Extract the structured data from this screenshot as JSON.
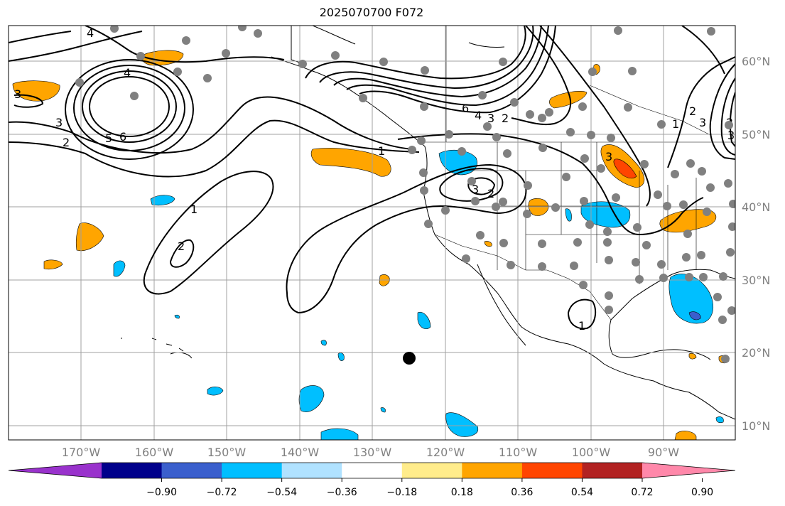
{
  "title": "2025070700 F072",
  "map": {
    "lat_labels": [
      "60°N",
      "50°N",
      "40°N",
      "30°N",
      "20°N",
      "10°N"
    ],
    "lon_labels": [
      "170°W",
      "160°W",
      "150°W",
      "140°W",
      "130°W",
      "120°W",
      "110°W",
      "100°W",
      "90°W"
    ],
    "contour_labels": [
      "4",
      "4",
      "3",
      "3",
      "2",
      "5",
      "6",
      "1",
      "1",
      "2",
      "1",
      "6",
      "4",
      "3",
      "2",
      "3",
      "2",
      "2",
      "3",
      "1",
      "3",
      "2",
      "3"
    ],
    "colors": {
      "contour": "#000000",
      "station_marker": "#808080",
      "center_marker": "#000000",
      "grid": "#a0a0a0"
    }
  },
  "colorbar": {
    "tick_labels": [
      "−0.90",
      "−0.72",
      "−0.54",
      "−0.36",
      "−0.18",
      "0.18",
      "0.36",
      "0.54",
      "0.72",
      "0.90"
    ],
    "colors": [
      "#9932cc",
      "#00008b",
      "#3a5fcd",
      "#00bfff",
      "#b0e2ff",
      "#ffffff",
      "#ffec8b",
      "#ffa500",
      "#ff4500",
      "#b22222",
      "#ff88aa"
    ]
  }
}
